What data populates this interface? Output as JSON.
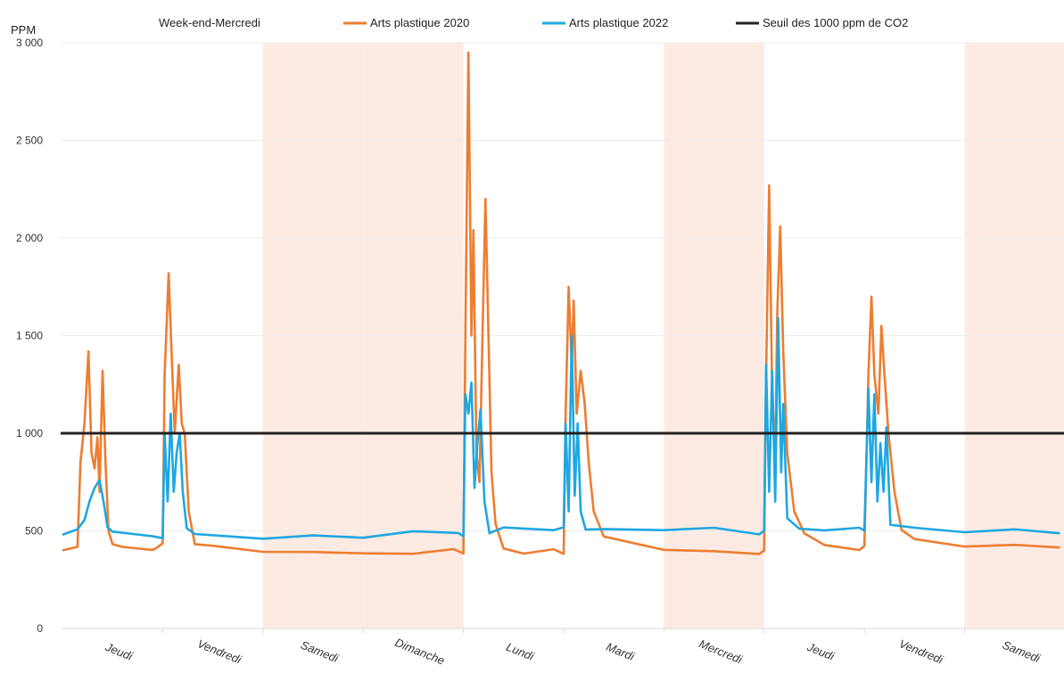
{
  "chart_data": {
    "type": "line",
    "ylabel": "PPM",
    "ylim": [
      0,
      3000
    ],
    "yticks": [
      0,
      500,
      1000,
      1500,
      2000,
      2500,
      3000
    ],
    "ytick_labels": [
      "0",
      "500",
      "1 000",
      "1 500",
      "2 000",
      "2 500",
      "3 000"
    ],
    "categories": [
      "Jeudi",
      "Vendredi",
      "Samedi",
      "Dimanche",
      "Lundi",
      "Mardi",
      "Mercredi",
      "Jeudi",
      "Vendredi",
      "Samedi"
    ],
    "shaded_days": [
      2,
      3,
      6,
      9
    ],
    "shade_color": "#fdebe3",
    "legend": {
      "placement": "top",
      "entries": [
        {
          "label": "Week-end-Mercredi",
          "kind": "patch",
          "color": "#fdebe3"
        },
        {
          "label": "Arts plastique 2020",
          "kind": "line",
          "color": "#ed7d31"
        },
        {
          "label": "Arts plastique 2022",
          "kind": "line",
          "color": "#1ea7e1"
        },
        {
          "label": "Seuil des 1000 ppm de CO2",
          "kind": "line",
          "color": "#222222"
        }
      ]
    },
    "threshold": {
      "name": "Seuil des 1000 ppm de CO2",
      "value": 1000,
      "color": "#222222"
    },
    "series": [
      {
        "name": "Arts plastique 2020",
        "color": "#ed7d31",
        "points": [
          [
            0.0,
            400
          ],
          [
            0.15,
            400
          ],
          [
            0.18,
            850
          ],
          [
            0.22,
            1050
          ],
          [
            0.26,
            1420
          ],
          [
            0.29,
            900
          ],
          [
            0.32,
            820
          ],
          [
            0.35,
            980
          ],
          [
            0.37,
            700
          ],
          [
            0.4,
            1320
          ],
          [
            0.43,
            850
          ],
          [
            0.46,
            500
          ],
          [
            0.5,
            450
          ],
          [
            0.6,
            420
          ],
          [
            0.9,
            420
          ],
          [
            0.94,
            420
          ],
          [
            1.0,
            420
          ],
          [
            1.02,
            1300
          ],
          [
            1.06,
            1820
          ],
          [
            1.09,
            1400
          ],
          [
            1.12,
            1000
          ],
          [
            1.16,
            1350
          ],
          [
            1.19,
            1050
          ],
          [
            1.22,
            1000
          ],
          [
            1.26,
            600
          ],
          [
            1.32,
            450
          ],
          [
            1.5,
            420
          ],
          [
            2.0,
            410
          ],
          [
            2.5,
            400
          ],
          [
            3.0,
            400
          ],
          [
            3.5,
            395
          ],
          [
            3.9,
            395
          ],
          [
            4.0,
            400
          ],
          [
            4.02,
            1500
          ],
          [
            4.05,
            2950
          ],
          [
            4.08,
            1500
          ],
          [
            4.1,
            2040
          ],
          [
            4.13,
            900
          ],
          [
            4.16,
            750
          ],
          [
            4.19,
            1500
          ],
          [
            4.22,
            2200
          ],
          [
            4.25,
            1500
          ],
          [
            4.28,
            800
          ],
          [
            4.32,
            550
          ],
          [
            4.4,
            420
          ],
          [
            4.6,
            400
          ],
          [
            4.9,
            400
          ],
          [
            5.0,
            400
          ],
          [
            5.02,
            1100
          ],
          [
            5.05,
            1750
          ],
          [
            5.08,
            1350
          ],
          [
            5.1,
            1680
          ],
          [
            5.13,
            1100
          ],
          [
            5.17,
            1320
          ],
          [
            5.21,
            1150
          ],
          [
            5.25,
            850
          ],
          [
            5.3,
            600
          ],
          [
            5.4,
            480
          ],
          [
            6.0,
            420
          ],
          [
            6.5,
            400
          ],
          [
            6.95,
            400
          ],
          [
            7.0,
            400
          ],
          [
            7.02,
            1300
          ],
          [
            7.05,
            2270
          ],
          [
            7.08,
            1200
          ],
          [
            7.11,
            850
          ],
          [
            7.13,
            1600
          ],
          [
            7.16,
            2060
          ],
          [
            7.19,
            1420
          ],
          [
            7.23,
            900
          ],
          [
            7.3,
            600
          ],
          [
            7.4,
            470
          ],
          [
            7.6,
            430
          ],
          [
            7.95,
            420
          ],
          [
            8.0,
            420
          ],
          [
            8.04,
            1300
          ],
          [
            8.07,
            1700
          ],
          [
            8.1,
            1300
          ],
          [
            8.14,
            1100
          ],
          [
            8.17,
            1550
          ],
          [
            8.2,
            1300
          ],
          [
            8.24,
            1000
          ],
          [
            8.3,
            700
          ],
          [
            8.37,
            500
          ],
          [
            8.5,
            440
          ],
          [
            9.0,
            420
          ],
          [
            9.5,
            410
          ],
          [
            9.95,
            410
          ]
        ]
      },
      {
        "name": "Arts plastique 2022",
        "color": "#1ea7e1",
        "points": [
          [
            0.0,
            480
          ],
          [
            0.15,
            490
          ],
          [
            0.22,
            560
          ],
          [
            0.27,
            650
          ],
          [
            0.32,
            720
          ],
          [
            0.37,
            760
          ],
          [
            0.41,
            650
          ],
          [
            0.45,
            530
          ],
          [
            0.5,
            480
          ],
          [
            0.9,
            480
          ],
          [
            1.0,
            480
          ],
          [
            1.02,
            1000
          ],
          [
            1.05,
            650
          ],
          [
            1.08,
            1100
          ],
          [
            1.11,
            700
          ],
          [
            1.14,
            900
          ],
          [
            1.17,
            1000
          ],
          [
            1.2,
            700
          ],
          [
            1.24,
            500
          ],
          [
            1.32,
            470
          ],
          [
            2.0,
            450
          ],
          [
            2.5,
            460
          ],
          [
            3.0,
            470
          ],
          [
            3.5,
            480
          ],
          [
            3.95,
            490
          ],
          [
            4.0,
            490
          ],
          [
            4.02,
            1200
          ],
          [
            4.05,
            1100
          ],
          [
            4.08,
            1260
          ],
          [
            4.11,
            720
          ],
          [
            4.14,
            950
          ],
          [
            4.17,
            1120
          ],
          [
            4.21,
            650
          ],
          [
            4.26,
            480
          ],
          [
            4.4,
            500
          ],
          [
            4.9,
            500
          ],
          [
            5.0,
            500
          ],
          [
            5.02,
            1050
          ],
          [
            5.05,
            600
          ],
          [
            5.08,
            1500
          ],
          [
            5.11,
            680
          ],
          [
            5.14,
            1050
          ],
          [
            5.17,
            600
          ],
          [
            5.22,
            520
          ],
          [
            5.4,
            520
          ],
          [
            6.0,
            520
          ],
          [
            6.5,
            510
          ],
          [
            6.95,
            500
          ],
          [
            7.0,
            500
          ],
          [
            7.02,
            1350
          ],
          [
            7.05,
            700
          ],
          [
            7.08,
            1320
          ],
          [
            7.11,
            650
          ],
          [
            7.14,
            1590
          ],
          [
            7.17,
            800
          ],
          [
            7.19,
            1150
          ],
          [
            7.23,
            550
          ],
          [
            7.35,
            520
          ],
          [
            7.6,
            520
          ],
          [
            7.95,
            520
          ],
          [
            8.0,
            520
          ],
          [
            8.04,
            1230
          ],
          [
            8.07,
            750
          ],
          [
            8.1,
            1200
          ],
          [
            8.13,
            650
          ],
          [
            8.16,
            950
          ],
          [
            8.19,
            700
          ],
          [
            8.22,
            1030
          ],
          [
            8.26,
            520
          ],
          [
            8.5,
            500
          ],
          [
            9.0,
            500
          ],
          [
            9.5,
            490
          ],
          [
            9.95,
            490
          ]
        ]
      }
    ]
  }
}
